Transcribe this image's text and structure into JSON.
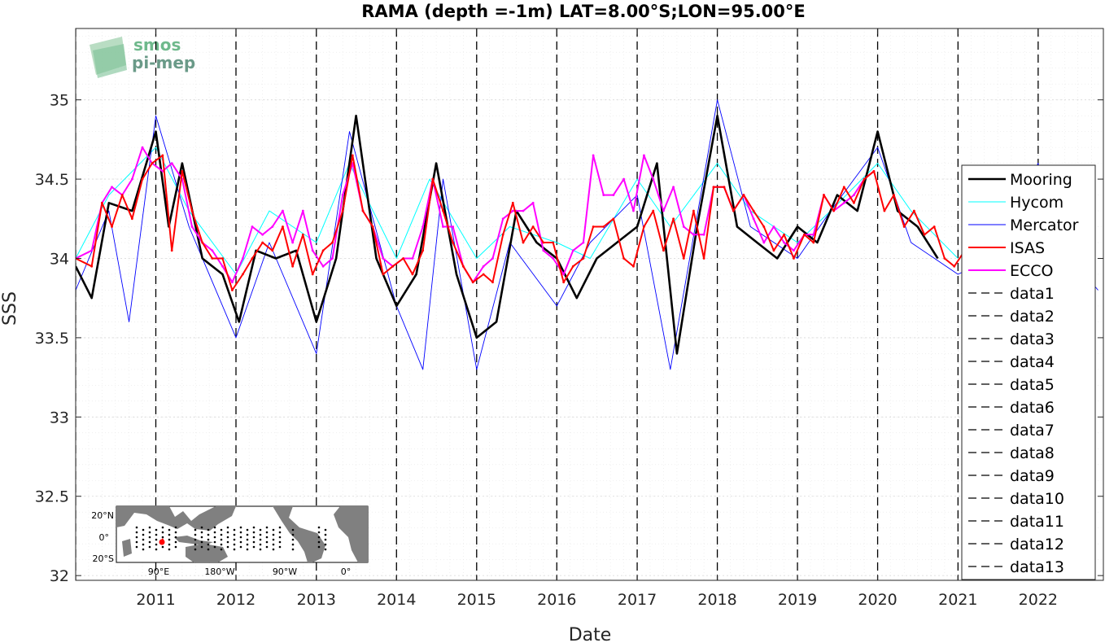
{
  "chart_data": {
    "type": "line",
    "title": "RAMA (depth =-1m) LAT=8.00°S;LON=95.00°E",
    "xlabel": "Date",
    "ylabel": "SSS",
    "xlim": [
      "2010-01-01",
      "2022-10-25"
    ],
    "ylim": [
      31.97,
      35.45
    ],
    "x_ticks": [
      "2011-01-01",
      "2012-01-01",
      "2013-01-01",
      "2014-01-01",
      "2015-01-01",
      "2016-01-01",
      "2017-01-01",
      "2018-01-01",
      "2019-01-01",
      "2020-01-01",
      "2021-01-01",
      "2022-01-01"
    ],
    "x_tick_labels": [
      "2011",
      "2012",
      "2013",
      "2014",
      "2015",
      "2016",
      "2017",
      "2018",
      "2019",
      "2020",
      "2021",
      "2022"
    ],
    "y_ticks": [
      32,
      32.5,
      33,
      33.5,
      34,
      34.5,
      35
    ],
    "y_tick_labels": [
      "32",
      "32.5",
      "33",
      "33.5",
      "34",
      "34.5",
      "35"
    ],
    "grid": true,
    "legend_position": "right",
    "series": [
      {
        "name": "Mooring",
        "color": "#000000",
        "x": [
          "2010-01-01",
          "2010-03-15",
          "2010-06-01",
          "2010-09-15",
          "2011-01-01",
          "2011-03-01",
          "2011-05-01",
          "2011-08-01",
          "2011-11-01",
          "2012-01-15",
          "2012-04-01",
          "2012-07-01",
          "2012-10-01",
          "2013-01-01",
          "2013-04-01",
          "2013-07-01",
          "2013-10-01",
          "2014-01-01",
          "2014-04-01",
          "2014-07-01",
          "2014-10-01",
          "2015-01-01",
          "2015-04-01",
          "2015-07-01",
          "2015-10-01",
          "2016-01-01",
          "2016-04-01",
          "2016-07-01",
          "2016-10-01",
          "2017-01-01",
          "2017-04-01",
          "2017-07-01",
          "2017-10-01",
          "2018-01-01",
          "2018-04-01",
          "2018-07-01",
          "2018-10-01",
          "2019-01-01",
          "2019-04-01",
          "2019-07-01",
          "2019-10-01",
          "2020-01-01",
          "2020-04-01",
          "2020-07-01",
          "2020-10-01"
        ],
        "y": [
          33.95,
          33.75,
          34.35,
          34.3,
          34.8,
          34.2,
          34.6,
          34.0,
          33.9,
          33.6,
          34.05,
          34.0,
          34.05,
          33.6,
          34.0,
          34.9,
          34.0,
          33.7,
          33.9,
          34.6,
          33.9,
          33.5,
          33.6,
          34.3,
          34.1,
          34.0,
          33.75,
          34.0,
          34.1,
          34.2,
          34.6,
          33.4,
          34.2,
          34.9,
          34.2,
          34.1,
          34.0,
          34.2,
          34.1,
          34.4,
          34.3,
          34.8,
          34.3,
          34.2,
          34.0
        ]
      },
      {
        "name": "Hycom",
        "color": "#00ffff",
        "x": [
          "2010-01-01",
          "2010-06-01",
          "2011-01-01",
          "2011-06-01",
          "2012-01-01",
          "2012-06-01",
          "2013-01-01",
          "2013-06-01",
          "2014-01-01",
          "2014-06-01",
          "2015-01-01",
          "2015-06-01",
          "2016-01-01",
          "2016-06-01",
          "2017-01-01",
          "2017-06-01",
          "2018-01-01",
          "2018-06-01",
          "2019-01-01",
          "2019-06-01",
          "2020-01-01",
          "2020-06-01",
          "2021-01-01"
        ],
        "y": [
          34.0,
          34.4,
          34.7,
          34.3,
          33.9,
          34.3,
          34.1,
          34.6,
          34.0,
          34.5,
          34.0,
          34.2,
          34.1,
          34.0,
          34.5,
          34.2,
          34.6,
          34.3,
          34.1,
          34.3,
          34.6,
          34.3,
          34.0
        ]
      },
      {
        "name": "Mercator",
        "color": "#0000ff",
        "x": [
          "2010-01-01",
          "2010-06-01",
          "2010-09-01",
          "2011-01-01",
          "2011-06-01",
          "2012-01-01",
          "2012-06-01",
          "2013-01-01",
          "2013-06-01",
          "2014-01-01",
          "2014-05-01",
          "2014-08-01",
          "2015-01-01",
          "2015-06-01",
          "2016-01-01",
          "2016-06-01",
          "2017-01-01",
          "2017-06-01",
          "2018-01-01",
          "2018-06-01",
          "2019-01-01",
          "2019-06-01",
          "2020-01-01",
          "2020-06-01",
          "2021-01-01",
          "2021-06-01",
          "2022-01-01",
          "2022-03-01",
          "2022-06-01",
          "2022-10-01"
        ],
        "y": [
          33.8,
          34.3,
          33.6,
          34.9,
          34.2,
          33.5,
          34.1,
          33.4,
          34.8,
          33.7,
          33.3,
          34.5,
          33.3,
          34.1,
          33.7,
          34.1,
          34.4,
          33.3,
          35.0,
          34.2,
          34.0,
          34.3,
          34.7,
          34.1,
          33.9,
          34.0,
          34.6,
          34.3,
          34.0,
          33.8
        ]
      },
      {
        "name": "ISAS",
        "color": "#ff0000",
        "x": [
          "2010-01-01",
          "2010-03-15",
          "2010-05-01",
          "2010-06-15",
          "2010-08-01",
          "2010-09-15",
          "2010-11-01",
          "2010-12-15",
          "2011-02-01",
          "2011-03-15",
          "2011-05-01",
          "2011-06-15",
          "2011-08-01",
          "2011-09-15",
          "2011-11-01",
          "2011-12-15",
          "2012-02-01",
          "2012-03-15",
          "2012-05-01",
          "2012-06-15",
          "2012-08-01",
          "2012-09-15",
          "2012-11-01",
          "2012-12-15",
          "2013-02-01",
          "2013-03-15",
          "2013-05-01",
          "2013-06-15",
          "2013-08-01",
          "2013-09-15",
          "2013-11-01",
          "2013-12-15",
          "2014-02-01",
          "2014-03-15",
          "2014-05-01",
          "2014-06-15",
          "2014-08-01",
          "2014-09-15",
          "2014-11-01",
          "2014-12-15",
          "2015-02-01",
          "2015-03-15",
          "2015-05-01",
          "2015-06-15",
          "2015-08-01",
          "2015-09-15",
          "2015-11-01",
          "2015-12-15",
          "2016-02-01",
          "2016-03-15",
          "2016-05-01",
          "2016-06-15",
          "2016-08-01",
          "2016-09-15",
          "2016-11-01",
          "2016-12-15",
          "2017-02-01",
          "2017-03-15",
          "2017-05-01",
          "2017-06-15",
          "2017-08-01",
          "2017-09-15",
          "2017-11-01",
          "2017-12-15",
          "2018-02-01",
          "2018-03-15",
          "2018-05-01",
          "2018-06-15",
          "2018-08-01",
          "2018-09-15",
          "2018-11-01",
          "2018-12-15",
          "2019-02-01",
          "2019-03-15",
          "2019-05-01",
          "2019-06-15",
          "2019-08-01",
          "2019-09-15",
          "2019-11-01",
          "2019-12-15",
          "2020-02-01",
          "2020-03-15",
          "2020-05-01",
          "2020-06-15",
          "2020-08-01",
          "2020-09-15",
          "2020-11-01",
          "2020-12-15",
          "2021-02-01"
        ],
        "y": [
          34.0,
          33.95,
          34.35,
          34.2,
          34.4,
          34.25,
          34.5,
          34.6,
          34.65,
          34.05,
          34.55,
          34.3,
          34.1,
          34.0,
          34.0,
          33.8,
          33.9,
          34.0,
          34.1,
          34.05,
          34.2,
          33.95,
          34.15,
          33.9,
          34.05,
          34.1,
          34.3,
          34.65,
          34.3,
          34.2,
          33.9,
          33.95,
          34.0,
          33.9,
          34.05,
          34.5,
          34.3,
          34.1,
          33.95,
          33.85,
          33.9,
          33.85,
          34.15,
          34.35,
          34.1,
          34.2,
          34.1,
          34.1,
          33.85,
          33.95,
          34.0,
          34.2,
          34.2,
          34.25,
          34.0,
          33.95,
          34.2,
          34.3,
          34.05,
          34.25,
          34.0,
          34.3,
          34.0,
          34.45,
          34.45,
          34.3,
          34.4,
          34.3,
          34.2,
          34.05,
          34.15,
          34.0,
          34.15,
          34.1,
          34.4,
          34.3,
          34.45,
          34.35,
          34.5,
          34.55,
          34.3,
          34.4,
          34.2,
          34.3,
          34.15,
          34.2,
          34.0,
          33.95,
          34.05
        ]
      },
      {
        "name": "ECCO",
        "color": "#ff00ff",
        "x": [
          "2010-01-01",
          "2010-03-15",
          "2010-05-01",
          "2010-06-15",
          "2010-08-01",
          "2010-09-15",
          "2010-11-01",
          "2010-12-15",
          "2011-02-01",
          "2011-03-15",
          "2011-05-01",
          "2011-06-15",
          "2011-08-01",
          "2011-09-15",
          "2011-11-01",
          "2011-12-15",
          "2012-02-01",
          "2012-03-15",
          "2012-05-01",
          "2012-06-15",
          "2012-08-01",
          "2012-09-15",
          "2012-11-01",
          "2012-12-15",
          "2013-02-01",
          "2013-03-15",
          "2013-05-01",
          "2013-06-15",
          "2013-08-01",
          "2013-09-15",
          "2013-11-01",
          "2013-12-15",
          "2014-02-01",
          "2014-03-15",
          "2014-05-01",
          "2014-06-15",
          "2014-08-01",
          "2014-09-15",
          "2014-11-01",
          "2014-12-15",
          "2015-02-01",
          "2015-03-15",
          "2015-05-01",
          "2015-06-15",
          "2015-08-01",
          "2015-09-15",
          "2015-11-01",
          "2015-12-15",
          "2016-02-01",
          "2016-03-15",
          "2016-05-01",
          "2016-06-15",
          "2016-08-01",
          "2016-09-15",
          "2016-11-01",
          "2016-12-15",
          "2017-02-01",
          "2017-03-15",
          "2017-05-01",
          "2017-06-15",
          "2017-08-01",
          "2017-09-15",
          "2017-11-01",
          "2017-12-15",
          "2018-02-01",
          "2018-03-15",
          "2018-05-01",
          "2018-06-15",
          "2018-08-01",
          "2018-09-15",
          "2018-11-01",
          "2018-12-15",
          "2019-02-01",
          "2019-03-15",
          "2019-05-01",
          "2019-06-15",
          "2019-08-01",
          "2019-09-15",
          "2019-11-01",
          "2019-12-15"
        ],
        "y": [
          34.0,
          34.05,
          34.35,
          34.45,
          34.4,
          34.5,
          34.7,
          34.6,
          34.55,
          34.6,
          34.5,
          34.2,
          34.1,
          34.05,
          33.95,
          33.85,
          34.0,
          34.2,
          34.15,
          34.2,
          34.3,
          34.1,
          34.3,
          34.05,
          33.95,
          34.0,
          34.4,
          34.6,
          34.3,
          34.2,
          34.0,
          33.95,
          34.0,
          34.0,
          34.2,
          34.5,
          34.2,
          34.2,
          33.95,
          33.85,
          33.95,
          34.0,
          34.25,
          34.3,
          34.3,
          34.35,
          34.05,
          34.0,
          33.9,
          34.05,
          34.1,
          34.65,
          34.4,
          34.4,
          34.5,
          34.3,
          34.65,
          34.5,
          34.3,
          34.45,
          34.2,
          34.15,
          34.15,
          34.45,
          34.45,
          34.3,
          34.4,
          34.25,
          34.1,
          34.2,
          34.1,
          34.05,
          34.15,
          34.15,
          34.4,
          34.3,
          34.35,
          34.4,
          34.5,
          34.55
        ]
      }
    ],
    "vlines": [
      {
        "name": "data1",
        "x": "2011-01-01",
        "color": "#000000"
      },
      {
        "name": "data2",
        "x": "2012-01-01",
        "color": "#000000"
      },
      {
        "name": "data3",
        "x": "2013-01-01",
        "color": "#000000"
      },
      {
        "name": "data4",
        "x": "2014-01-01",
        "color": "#000000"
      },
      {
        "name": "data5",
        "x": "2015-01-01",
        "color": "#000000"
      },
      {
        "name": "data6",
        "x": "2016-01-01",
        "color": "#000000"
      },
      {
        "name": "data7",
        "x": "2017-01-01",
        "color": "#000000"
      },
      {
        "name": "data8",
        "x": "2018-01-01",
        "color": "#000000"
      },
      {
        "name": "data9",
        "x": "2019-01-01",
        "color": "#000000"
      },
      {
        "name": "data10",
        "x": "2020-01-01",
        "color": "#000000"
      },
      {
        "name": "data11",
        "x": "2021-01-01",
        "color": "#000000"
      },
      {
        "name": "data12",
        "x": "2022-01-01",
        "color": "#000000"
      },
      {
        "name": "data13",
        "x": "2010-01-01",
        "color": "#000000"
      }
    ],
    "inset_map": {
      "lat_labels": [
        "20°N",
        "0°",
        "20°S"
      ],
      "lon_labels": [
        "90°E",
        "180°W",
        "90°W",
        "0°"
      ],
      "marker_color": "#ff0000"
    }
  },
  "logo": {
    "line1": "smos",
    "line2": "pi-mep"
  }
}
